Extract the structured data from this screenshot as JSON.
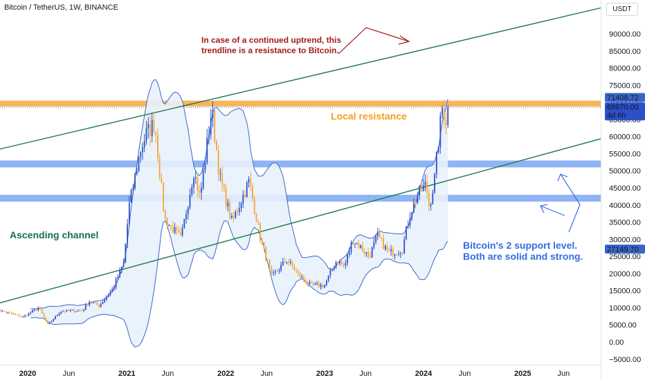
{
  "header": {
    "title": "Bitcoin / TetherUS, 1W, BINANCE",
    "currency": "USDT"
  },
  "price_tags": {
    "high": "71408.72",
    "last": "68670.00",
    "countdown": "4d 6h",
    "low": "27149.70"
  },
  "annotations": {
    "resistance_note_line1": "In case of a continued uptrend, this",
    "resistance_note_line2": "trendline is a resistance to Bitcoin.",
    "local_resistance": "Local resistance",
    "ascending_channel": "Ascending channel",
    "support_note_line1": "Bitcoin's 2 support level.",
    "support_note_line2": "Both are solid and strong."
  },
  "colors": {
    "up": "#2b50c8",
    "down": "#f7a531",
    "channel": "#1e7a4a",
    "support_band": "#8fb4f5",
    "resistance_band": "#f7b55c",
    "bollinger": "#3a66c9",
    "bollinger_fill": "#e8f1fc",
    "note_red": "#a31a1a",
    "note_orange": "#f59d1e",
    "note_green": "#177048",
    "note_blue": "#2f6fe0"
  },
  "chart_data": {
    "type": "candlestick",
    "interval": "1W",
    "y_axis": {
      "min": -5000,
      "max": 95000,
      "ticks": [
        -5000,
        0,
        5000,
        10000,
        15000,
        20000,
        25000,
        30000,
        35000,
        40000,
        45000,
        50000,
        55000,
        60000,
        65000,
        70000,
        75000,
        80000,
        85000,
        90000
      ],
      "tick_labels": [
        "−5000.00",
        "0.00",
        "5000.00",
        "10000.00",
        "15000.00",
        "20000.00",
        "25000.00",
        "30000.00",
        "35000.00",
        "40000.00",
        "45000.00",
        "50000.00",
        "55000.00",
        "60000.00",
        "65000.00",
        "70000.00",
        "75000.00",
        "80000.00",
        "85000.00",
        "90000.00"
      ]
    },
    "x_axis": {
      "ticks": [
        "2020-01-01",
        "2020-06-01",
        "2021-01-01",
        "2021-06-01",
        "2022-01-01",
        "2022-06-01",
        "2023-01-01",
        "2023-06-01",
        "2024-01-01",
        "2024-06-01",
        "2025-01-01",
        "2025-06-01"
      ],
      "tick_labels": [
        "2020",
        "Jun",
        "2021",
        "Jun",
        "2022",
        "Jun",
        "2023",
        "Jun",
        "2024",
        "Jun",
        "2025",
        "Jun"
      ]
    },
    "price_path": [
      [
        "2019-09-01",
        9600
      ],
      [
        "2019-12-15",
        7300
      ],
      [
        "2020-02-10",
        10000
      ],
      [
        "2020-03-16",
        5000
      ],
      [
        "2020-05-01",
        9000
      ],
      [
        "2020-07-20",
        9200
      ],
      [
        "2020-08-17",
        12000
      ],
      [
        "2020-09-20",
        10500
      ],
      [
        "2020-11-10",
        15500
      ],
      [
        "2020-12-20",
        23000
      ],
      [
        "2021-01-10",
        40000
      ],
      [
        "2021-02-20",
        56000
      ],
      [
        "2021-03-15",
        61000
      ],
      [
        "2021-04-14",
        64000
      ],
      [
        "2021-05-20",
        36000
      ],
      [
        "2021-07-20",
        30000
      ],
      [
        "2021-09-05",
        50000
      ],
      [
        "2021-09-28",
        42000
      ],
      [
        "2021-11-10",
        68000
      ],
      [
        "2021-12-10",
        48000
      ],
      [
        "2022-01-24",
        35000
      ],
      [
        "2022-03-28",
        47000
      ],
      [
        "2022-05-10",
        30000
      ],
      [
        "2022-06-20",
        19000
      ],
      [
        "2022-08-15",
        24000
      ],
      [
        "2022-09-30",
        19300
      ],
      [
        "2022-11-10",
        16500
      ],
      [
        "2022-12-31",
        16500
      ],
      [
        "2023-02-15",
        24000
      ],
      [
        "2023-03-15",
        22000
      ],
      [
        "2023-04-15",
        30000
      ],
      [
        "2023-06-15",
        25000
      ],
      [
        "2023-07-15",
        31000
      ],
      [
        "2023-08-25",
        26000
      ],
      [
        "2023-10-15",
        27000
      ],
      [
        "2023-11-10",
        37000
      ],
      [
        "2023-12-10",
        43000
      ],
      [
        "2024-01-10",
        46000
      ],
      [
        "2024-01-22",
        39500
      ],
      [
        "2024-02-10",
        47000
      ],
      [
        "2024-02-28",
        61000
      ],
      [
        "2024-03-14",
        71000
      ],
      [
        "2024-03-20",
        63000
      ],
      [
        "2024-03-31",
        68670
      ]
    ],
    "last_price": 68670.0,
    "high_price": 71408.72,
    "low_label_price": 27149.7,
    "support_zones": [
      [
        41000,
        43000
      ],
      [
        51000,
        53000
      ]
    ],
    "resistance_zone": [
      68800,
      70500
    ],
    "ascending_channel": {
      "upper": [
        [
          "2019-09-01",
          56000
        ],
        [
          "2025-12-31",
          99000
        ]
      ],
      "lower": [
        [
          "2019-09-01",
          11000
        ],
        [
          "2025-12-31",
          61000
        ]
      ]
    },
    "annotations": [
      "In case of a continued uptrend, this trendline is a resistance to Bitcoin.",
      "Local resistance",
      "Ascending channel",
      "Bitcoin's 2 support level. Both are solid and strong."
    ]
  }
}
